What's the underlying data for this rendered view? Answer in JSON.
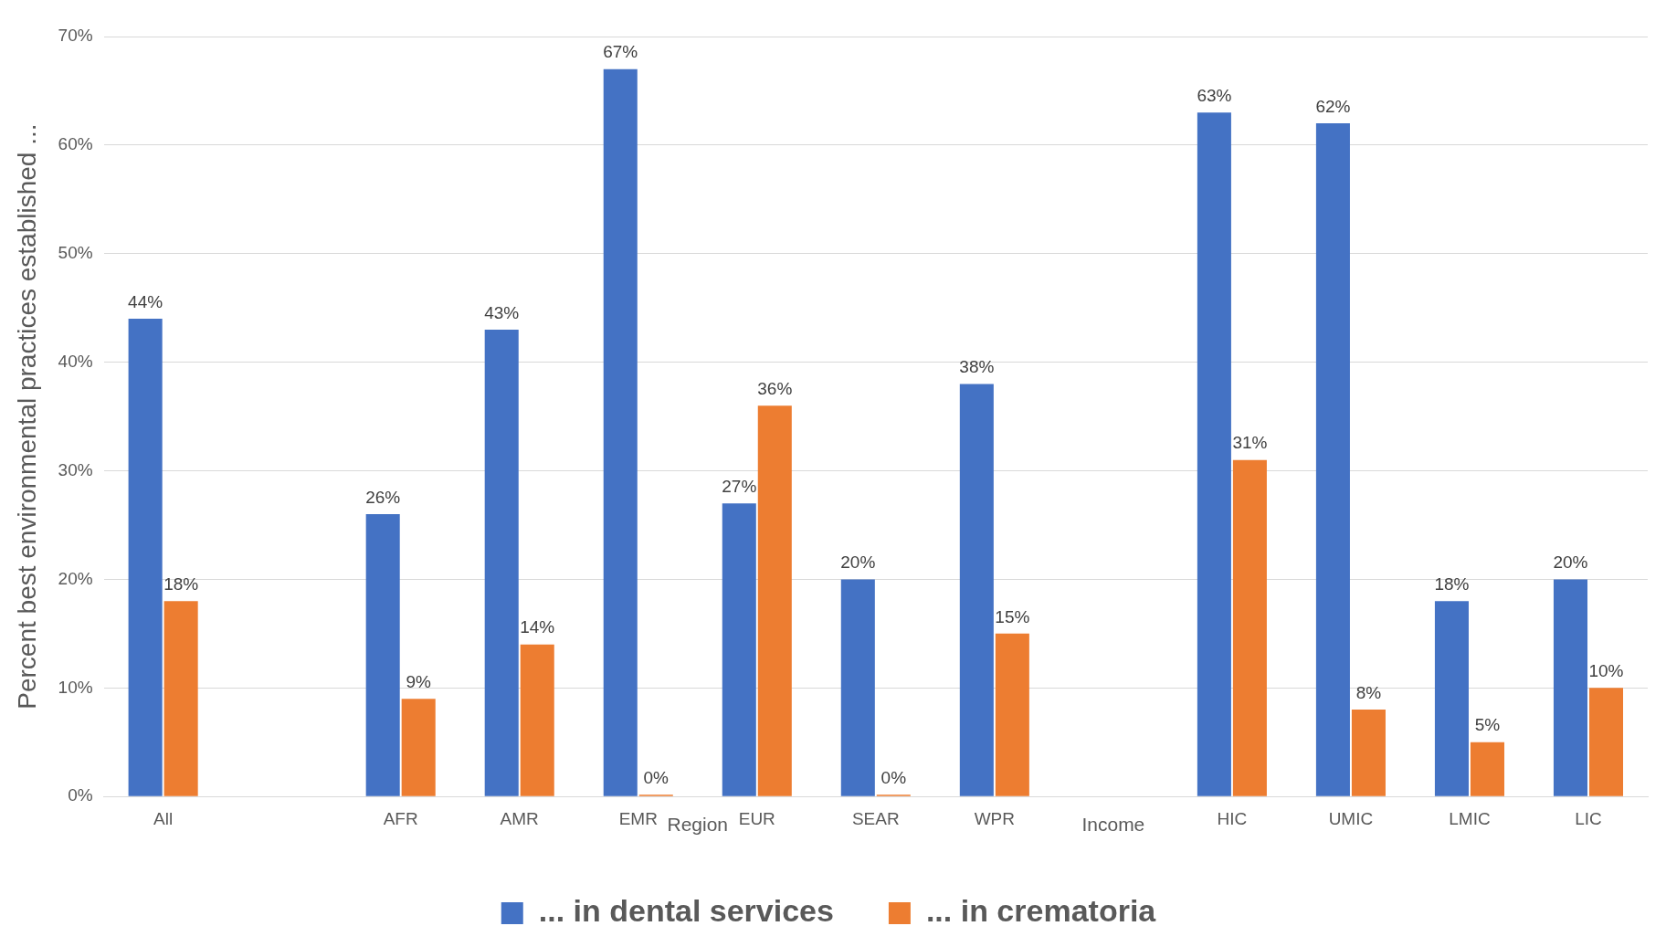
{
  "chart_data": {
    "type": "bar",
    "ylabel": "Percent best environmental practices established ...",
    "categories": [
      "All",
      null,
      "AFR",
      "AMR",
      "EMR",
      "EUR",
      "SEAR",
      "WPR",
      null,
      "HIC",
      "UMIC",
      "LMIC",
      "LIC"
    ],
    "series": [
      {
        "name": "... in dental services",
        "color": "#4472c4",
        "values": [
          44,
          null,
          26,
          43,
          67,
          27,
          20,
          38,
          null,
          63,
          62,
          18,
          20
        ],
        "value_labels": [
          "44%",
          null,
          "26%",
          "43%",
          "67%",
          "27%",
          "20%",
          "38%",
          null,
          "63%",
          "62%",
          "18%",
          "20%"
        ]
      },
      {
        "name": "... in crematoria",
        "color": "#ed7d31",
        "values": [
          18,
          null,
          9,
          14,
          0,
          36,
          0,
          15,
          null,
          31,
          8,
          5,
          10
        ],
        "value_labels": [
          "18%",
          null,
          "9%",
          "14%",
          "0%",
          "36%",
          "0%",
          "15%",
          null,
          "31%",
          "8%",
          "5%",
          "10%"
        ]
      }
    ],
    "ylim": [
      0,
      70
    ],
    "yticks": [
      {
        "value": 0,
        "label": "0%"
      },
      {
        "value": 10,
        "label": "10%"
      },
      {
        "value": 20,
        "label": "20%"
      },
      {
        "value": 30,
        "label": "30%"
      },
      {
        "value": 40,
        "label": "40%"
      },
      {
        "value": 50,
        "label": "50%"
      },
      {
        "value": 60,
        "label": "60%"
      },
      {
        "value": 70,
        "label": "70%"
      }
    ],
    "annotations": [
      "Region",
      "Income"
    ],
    "grid": "y",
    "legend": "bottom"
  }
}
